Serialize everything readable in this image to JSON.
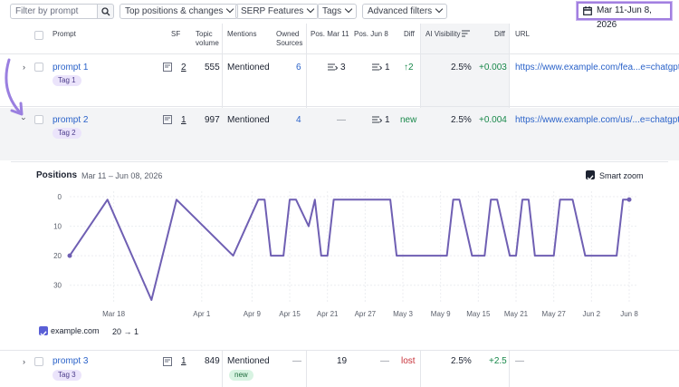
{
  "filters": {
    "search_placeholder": "Filter by prompt",
    "top_positions": "Top positions & changes",
    "serp_features": "SERP Features",
    "tags": "Tags",
    "advanced": "Advanced filters",
    "date_range": "Mar 11-Jun 8, 2026"
  },
  "columns": {
    "prompt": "Prompt",
    "sf": "SF",
    "topic_volume": "Topic volume",
    "mentions": "Mentions",
    "owned_sources": "Owned Sources",
    "pos_mar11": "Pos. Mar 11",
    "pos_jun8": "Pos. Jun 8",
    "diff": "Diff",
    "ai_visibility": "AI Visibility",
    "diff2": "Diff",
    "url": "URL"
  },
  "rows": [
    {
      "prompt": "prompt 1",
      "tag": "Tag 1",
      "sf": "2",
      "volume": "555",
      "mentions": "Mentioned",
      "owned": "6",
      "pos_start": "3",
      "pos_end": "1",
      "diff": "2",
      "ai_vis": "2.5%",
      "ai_diff": "+0.003",
      "url": "https://www.example.com/fea...e=chatgpt"
    },
    {
      "prompt": "prompt 2",
      "tag": "Tag 2",
      "sf": "1",
      "volume": "997",
      "mentions": "Mentioned",
      "owned": "4",
      "pos_start": "—",
      "pos_end": "1",
      "diff": "new",
      "ai_vis": "2.5%",
      "ai_diff": "+0.004",
      "url": "https://www.example.com/us/...e=chatgpt."
    },
    {
      "prompt": "prompt 3",
      "tag": "Tag 3",
      "sf": "1",
      "volume": "849",
      "mentions": "Mentioned",
      "mentions_badge": "new",
      "owned": "—",
      "pos_start": "19",
      "pos_end": "—",
      "diff": "lost",
      "ai_vis": "2.5%",
      "ai_diff": "+2.5",
      "url": "—"
    }
  ],
  "chart": {
    "title": "Positions",
    "range": "Mar 11 – Jun 08, 2026",
    "smart_zoom": "Smart zoom",
    "legend_domain": "example.com",
    "legend_from": "20",
    "legend_arrow": "→",
    "legend_to": "1"
  },
  "chart_data": {
    "type": "line",
    "yreversed": true,
    "ylim": [
      0,
      35
    ],
    "yticks": [
      "0",
      "10",
      "20",
      "30"
    ],
    "ytick_values": [
      0,
      10,
      20,
      30
    ],
    "xticks": [
      "Mar 18",
      "Apr 1",
      "Apr 9",
      "Apr 15",
      "Apr 21",
      "Apr 27",
      "May 3",
      "May 9",
      "May 15",
      "May 21",
      "May 27",
      "Jun 2",
      "Jun 8"
    ],
    "xtick_days": [
      7,
      21,
      29,
      35,
      41,
      47,
      53,
      59,
      65,
      71,
      77,
      83,
      89
    ],
    "x_range_days": [
      0,
      89
    ],
    "series": [
      {
        "name": "example.com",
        "color": "#6f5fb3",
        "x": [
          0,
          6,
          13,
          17,
          26,
          30,
          31,
          32,
          34,
          35,
          36,
          38,
          39,
          40,
          41,
          42,
          43,
          44,
          46,
          47,
          48,
          49,
          50,
          51,
          52,
          55,
          57,
          58,
          60,
          61,
          62,
          64,
          66,
          67,
          68,
          70,
          71,
          72,
          73,
          74,
          76,
          77,
          78,
          80,
          82,
          84,
          86,
          87,
          88,
          89
        ],
        "y": [
          20,
          1,
          35,
          1,
          20,
          1,
          1,
          20,
          20,
          1,
          1,
          10,
          1,
          20,
          20,
          1,
          1,
          1,
          1,
          1,
          1,
          1,
          1,
          1,
          20,
          20,
          20,
          20,
          20,
          1,
          1,
          20,
          20,
          1,
          1,
          20,
          20,
          1,
          1,
          20,
          20,
          20,
          1,
          1,
          20,
          20,
          20,
          20,
          1,
          1
        ]
      }
    ]
  }
}
